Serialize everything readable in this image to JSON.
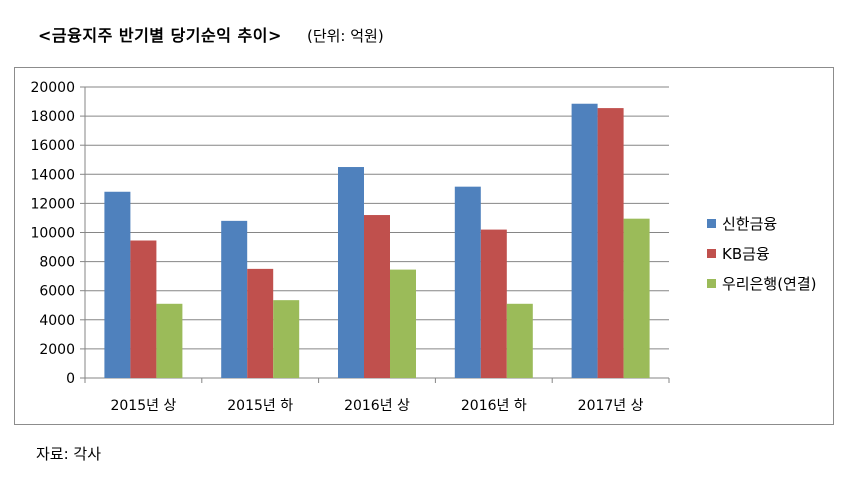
{
  "header": {
    "title": "<금융지주 반기별 당기순익 추이>",
    "unit": "(단위: 억원)"
  },
  "footer": {
    "source": "자료: 각사"
  },
  "colors": {
    "series": [
      "#4f81bd",
      "#c0504d",
      "#9bbb59"
    ],
    "grid": "#868686",
    "axis": "#868686"
  },
  "chart_data": {
    "type": "bar",
    "title": "<금융지주 반기별 당기순익 추이>",
    "unit": "(단위: 억원)",
    "categories": [
      "2015년 상",
      "2015년 하",
      "2016년 상",
      "2016년 하",
      "2017년 상"
    ],
    "series": [
      {
        "name": "신한금융",
        "values": [
          12800,
          10800,
          14500,
          13150,
          18850
        ]
      },
      {
        "name": "KB금융",
        "values": [
          9450,
          7500,
          11200,
          10200,
          18550
        ]
      },
      {
        "name": "우리은행(연결)",
        "values": [
          5100,
          5350,
          7450,
          5100,
          10950
        ]
      }
    ],
    "ylim": [
      0,
      20000
    ],
    "yticks": [
      0,
      2000,
      4000,
      6000,
      8000,
      10000,
      12000,
      14000,
      16000,
      18000,
      20000
    ],
    "grid": true,
    "legend_position": "right"
  }
}
